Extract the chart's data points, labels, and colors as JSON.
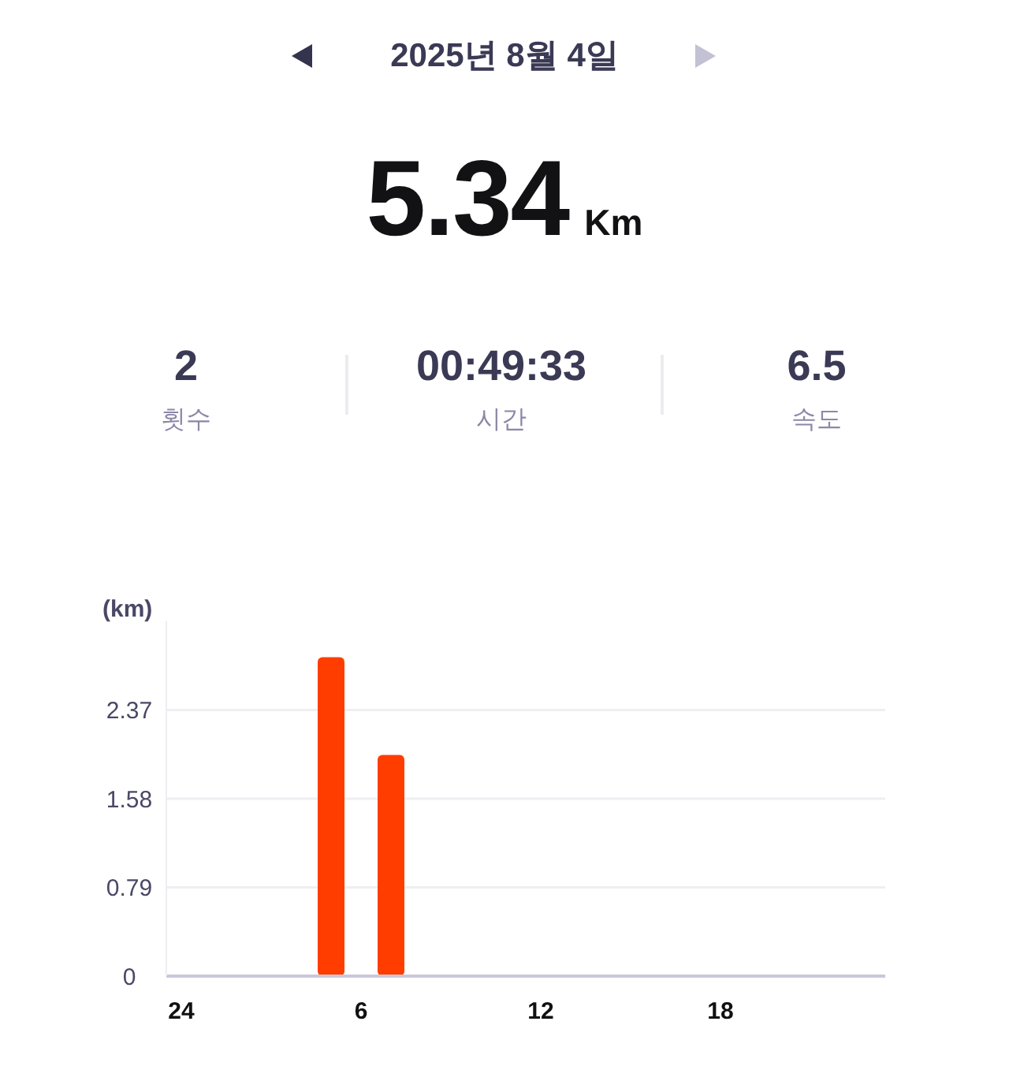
{
  "chart_data": {
    "type": "bar",
    "title": "2025년 8월 4일",
    "annotations": [
      "5.34",
      "Km",
      "2",
      "횟수",
      "00:49:33",
      "시간",
      "6.5",
      "속도"
    ],
    "ylabel": "(km)",
    "categories": [
      "24",
      null,
      null,
      null,
      null,
      null,
      "6",
      null,
      null,
      null,
      null,
      null,
      "12",
      null,
      null,
      null,
      null,
      null,
      "18",
      null,
      null,
      null,
      null,
      null
    ],
    "values": [
      null,
      null,
      null,
      null,
      null,
      2.84,
      null,
      1.97,
      null,
      null,
      null,
      null,
      null,
      null,
      null,
      null,
      null,
      null,
      null,
      null,
      null,
      null,
      null,
      null
    ],
    "color": "#ff3d00",
    "ylim": [
      0,
      3.16
    ],
    "yticks": [
      0,
      0.79,
      1.58,
      2.37
    ],
    "grid": "y"
  }
}
